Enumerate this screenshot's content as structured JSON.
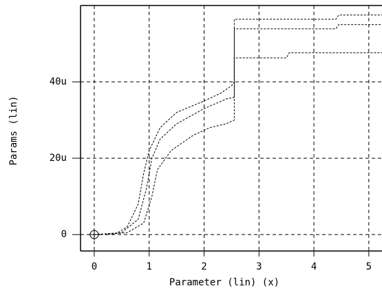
{
  "chart_data": {
    "type": "line",
    "ylabel": "Params (lin)",
    "xlabel": "Parameter (lin) (x)",
    "xlim": [
      -0.25,
      5.24
    ],
    "ylim": [
      -4.3,
      60
    ],
    "xticks": [
      0,
      1,
      2,
      3,
      4,
      5
    ],
    "yticks": [
      {
        "value": 0,
        "label": "0"
      },
      {
        "value": 20,
        "label": "20u"
      },
      {
        "value": 40,
        "label": "40u"
      }
    ],
    "grid": true,
    "series": [
      {
        "color": "#000000",
        "x": [
          0,
          0.4,
          0.6,
          0.8,
          0.9,
          1.0,
          1.2,
          1.5,
          2.0,
          2.3,
          2.5,
          2.55,
          2.55,
          4.4,
          4.45,
          5.24
        ],
        "values": [
          0,
          0.3,
          2,
          8,
          16,
          22,
          28,
          32,
          35,
          37,
          39,
          40,
          56.4,
          56.4,
          57.5,
          57.5
        ]
      },
      {
        "color": "#000000",
        "x": [
          0,
          0.5,
          0.8,
          0.95,
          1.05,
          1.2,
          1.5,
          2.0,
          2.4,
          2.55,
          2.55,
          4.4,
          4.45,
          5.24
        ],
        "values": [
          0,
          0.5,
          4,
          12,
          20,
          25,
          29,
          33,
          35.5,
          36,
          53.9,
          53.9,
          55,
          55
        ]
      },
      {
        "color": "#000000",
        "x": [
          0.2,
          0.6,
          0.9,
          1.05,
          1.15,
          1.4,
          1.8,
          2.1,
          2.4,
          2.55,
          2.55,
          3.5,
          3.55,
          5.24
        ],
        "values": [
          0,
          0.5,
          3,
          10,
          17,
          22,
          26,
          28,
          29,
          30,
          46.3,
          46.3,
          47.6,
          47.6
        ]
      }
    ]
  }
}
